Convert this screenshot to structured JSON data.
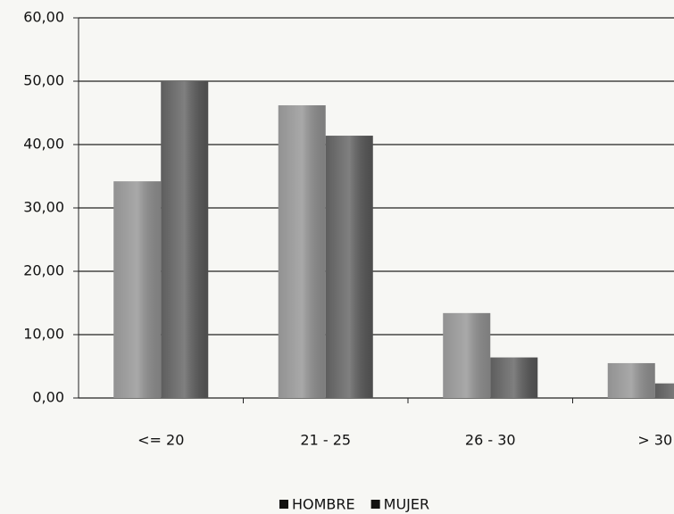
{
  "chart_data": {
    "type": "bar",
    "categories": [
      "<= 20",
      "21 - 25",
      "26 - 30",
      "> 30"
    ],
    "series": [
      {
        "name": "HOMBRE",
        "color": "#8c8c8c",
        "values": [
          34.2,
          46.2,
          13.4,
          5.5
        ]
      },
      {
        "name": "MUJER",
        "color": "#555555",
        "values": [
          50.0,
          41.4,
          6.4,
          2.3
        ]
      }
    ],
    "ylim": [
      0,
      60
    ],
    "yticks": [
      {
        "value": 0,
        "label": "0,00"
      },
      {
        "value": 10,
        "label": "10,00"
      },
      {
        "value": 20,
        "label": "20,00"
      },
      {
        "value": 30,
        "label": "30,00"
      },
      {
        "value": 40,
        "label": "40,00"
      },
      {
        "value": 50,
        "label": "50,00"
      },
      {
        "value": 60,
        "label": "60,00"
      }
    ],
    "grid": true,
    "legend": "bottom"
  }
}
